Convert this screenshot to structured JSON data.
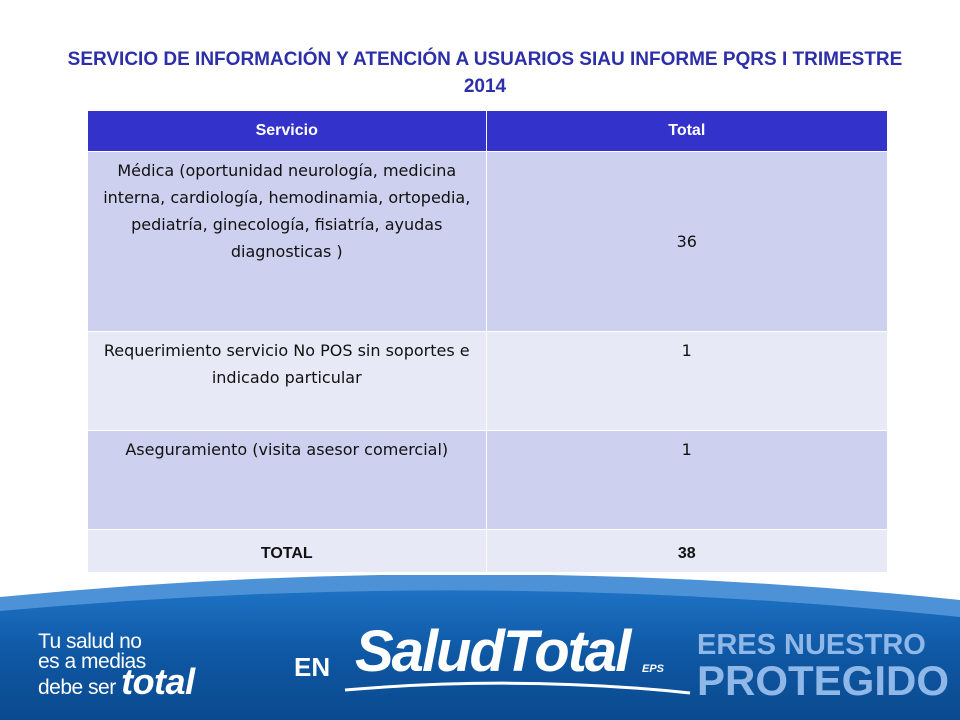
{
  "header": {
    "title": "SERVICIO DE INFORMACIÓN Y ATENCIÓN A USUARIOS  SIAU INFORME PQRS I TRIMESTRE 2014"
  },
  "table": {
    "columns": [
      "Servicio",
      "Total"
    ],
    "rows": [
      {
        "servicio": "Médica (oportunidad neurología, medicina interna, cardiología, hemodinamia, ortopedia, pediatría, ginecología, fisiatría, ayudas diagnosticas )",
        "total": "36"
      },
      {
        "servicio": "Requerimiento servicio No POS sin soportes e indicado particular",
        "total": "1"
      },
      {
        "servicio": "Aseguramiento (visita asesor comercial)",
        "total": "1"
      }
    ],
    "total_row": {
      "label": "TOTAL",
      "value": "38"
    }
  },
  "footer": {
    "slogan_line1": "Tu salud no",
    "slogan_line2": "es a medias",
    "slogan_line3": "debe ser",
    "slogan_word": "total",
    "en_label": "EN",
    "logo_text": "SaludTotal",
    "logo_suffix": "EPS",
    "tagline_line1": "ERES NUESTRO",
    "tagline_line2": "PROTEGIDO",
    "colors": {
      "band_dark": "#0b4a8e",
      "band_light": "#1d72c4",
      "table_header": "#3333cc",
      "title": "#2d2fa8"
    }
  }
}
